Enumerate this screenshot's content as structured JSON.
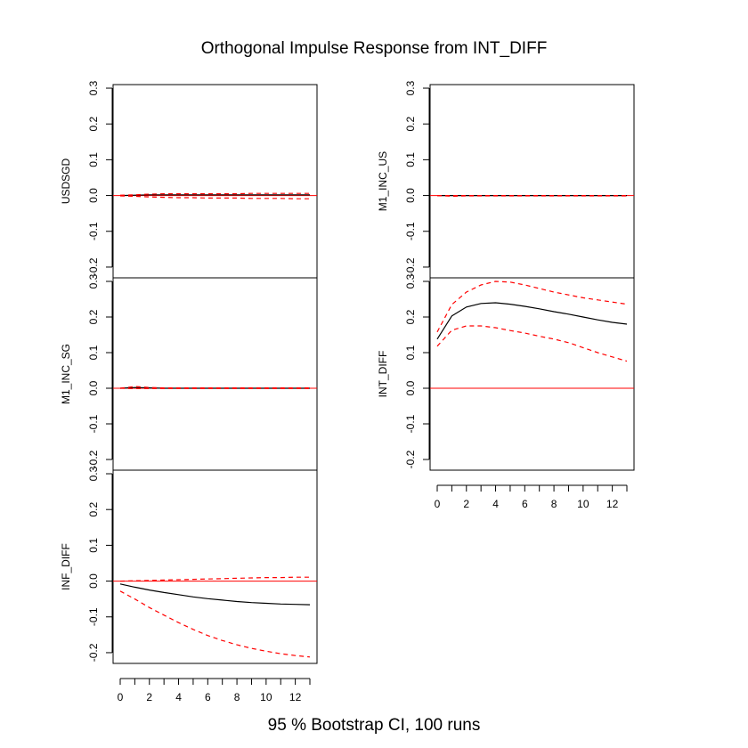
{
  "title": "Orthogonal Impulse Response from INT_DIFF",
  "subtitle": "95 % Bootstrap CI,  100 runs",
  "chart_data": [
    {
      "type": "line",
      "ylabel": "USDSGD",
      "x": [
        0,
        1,
        2,
        3,
        4,
        5,
        6,
        7,
        8,
        9,
        10,
        11,
        12,
        13
      ],
      "ylim": [
        -0.23,
        0.31
      ],
      "yticks": [
        "-0.2",
        "-0.1",
        "0.0",
        "0.1",
        "0.2",
        "0.3"
      ],
      "series": [
        {
          "role": "irf",
          "values": [
            0,
            0.001,
            0.002,
            0.002,
            0.002,
            0.002,
            0.002,
            0.002,
            0.002,
            0.002,
            0.002,
            0.002,
            0.002,
            0.002
          ]
        },
        {
          "role": "upper",
          "values": [
            0.001,
            0.002,
            0.004,
            0.005,
            0.005,
            0.005,
            0.005,
            0.005,
            0.005,
            0.006,
            0.006,
            0.006,
            0.006,
            0.006
          ]
        },
        {
          "role": "lower",
          "values": [
            -0.001,
            -0.002,
            -0.004,
            -0.005,
            -0.006,
            -0.006,
            -0.007,
            -0.007,
            -0.007,
            -0.008,
            -0.008,
            -0.008,
            -0.009,
            -0.009
          ]
        }
      ]
    },
    {
      "type": "line",
      "ylabel": "M1_INC_SG",
      "x": [
        0,
        1,
        2,
        3,
        4,
        5,
        6,
        7,
        8,
        9,
        10,
        11,
        12,
        13
      ],
      "ylim": [
        -0.23,
        0.31
      ],
      "yticks": [
        "-0.2",
        "-0.1",
        "0.0",
        "0.1",
        "0.2",
        "0.3"
      ],
      "series": [
        {
          "role": "irf",
          "values": [
            0,
            0.002,
            0.001,
            0,
            0,
            0,
            0,
            0,
            0,
            0,
            0,
            0,
            0,
            0
          ]
        },
        {
          "role": "upper",
          "values": [
            0,
            0.005,
            0.002,
            0.001,
            0.001,
            0.001,
            0.001,
            0.001,
            0.001,
            0.001,
            0.001,
            0.001,
            0.001,
            0.001
          ]
        },
        {
          "role": "lower",
          "values": [
            0,
            -0.001,
            -0.001,
            -0.001,
            -0.001,
            -0.001,
            -0.001,
            -0.001,
            -0.001,
            -0.001,
            -0.001,
            -0.001,
            -0.001,
            -0.001
          ]
        }
      ]
    },
    {
      "type": "line",
      "ylabel": "INF_DIFF",
      "x": [
        0,
        1,
        2,
        3,
        4,
        5,
        6,
        7,
        8,
        9,
        10,
        11,
        12,
        13
      ],
      "ylim": [
        -0.23,
        0.31
      ],
      "yticks": [
        "-0.2",
        "-0.1",
        "0.0",
        "0.1",
        "0.2",
        "0.3"
      ],
      "xticks": [
        "0",
        "2",
        "4",
        "6",
        "8",
        "10",
        "12"
      ],
      "series": [
        {
          "role": "irf",
          "values": [
            -0.008,
            -0.017,
            -0.025,
            -0.032,
            -0.038,
            -0.044,
            -0.049,
            -0.053,
            -0.057,
            -0.06,
            -0.062,
            -0.064,
            -0.065,
            -0.066
          ]
        },
        {
          "role": "upper",
          "values": [
            0,
            0.001,
            0.002,
            0.003,
            0.004,
            0.005,
            0.006,
            0.007,
            0.008,
            0.009,
            0.01,
            0.01,
            0.011,
            0.011
          ]
        },
        {
          "role": "lower",
          "values": [
            -0.028,
            -0.05,
            -0.074,
            -0.095,
            -0.116,
            -0.135,
            -0.152,
            -0.166,
            -0.178,
            -0.188,
            -0.196,
            -0.203,
            -0.208,
            -0.212
          ]
        }
      ]
    },
    {
      "type": "line",
      "ylabel": "M1_INC_US",
      "x": [
        0,
        1,
        2,
        3,
        4,
        5,
        6,
        7,
        8,
        9,
        10,
        11,
        12,
        13
      ],
      "ylim": [
        -0.23,
        0.31
      ],
      "yticks": [
        "-0.2",
        "-0.1",
        "0.0",
        "0.1",
        "0.2",
        "0.3"
      ],
      "series": [
        {
          "role": "irf",
          "values": [
            0,
            0,
            0,
            0,
            0,
            0,
            0,
            0,
            0,
            0,
            0,
            0,
            0,
            0
          ]
        },
        {
          "role": "upper",
          "values": [
            0,
            0,
            0,
            0,
            0,
            0,
            0,
            0,
            0,
            0,
            0,
            0,
            0,
            0
          ]
        },
        {
          "role": "lower",
          "values": [
            0,
            -0.002,
            -0.001,
            -0.001,
            -0.001,
            -0.001,
            -0.001,
            -0.001,
            -0.001,
            -0.001,
            -0.001,
            -0.001,
            -0.001,
            -0.001
          ]
        }
      ]
    },
    {
      "type": "line",
      "ylabel": "INT_DIFF",
      "x": [
        0,
        1,
        2,
        3,
        4,
        5,
        6,
        7,
        8,
        9,
        10,
        11,
        12,
        13
      ],
      "ylim": [
        -0.23,
        0.31
      ],
      "yticks": [
        "-0.2",
        "-0.1",
        "0.0",
        "0.1",
        "0.2",
        "0.3"
      ],
      "xticks": [
        "0",
        "2",
        "4",
        "6",
        "8",
        "10",
        "12"
      ],
      "series": [
        {
          "role": "irf",
          "values": [
            0.138,
            0.203,
            0.228,
            0.238,
            0.24,
            0.236,
            0.23,
            0.223,
            0.215,
            0.208,
            0.2,
            0.192,
            0.185,
            0.18
          ]
        },
        {
          "role": "upper",
          "values": [
            0.158,
            0.235,
            0.27,
            0.29,
            0.3,
            0.298,
            0.29,
            0.28,
            0.27,
            0.262,
            0.254,
            0.248,
            0.242,
            0.236
          ]
        },
        {
          "role": "lower",
          "values": [
            0.118,
            0.163,
            0.175,
            0.175,
            0.17,
            0.162,
            0.155,
            0.146,
            0.138,
            0.128,
            0.114,
            0.1,
            0.088,
            0.076
          ]
        }
      ]
    }
  ]
}
